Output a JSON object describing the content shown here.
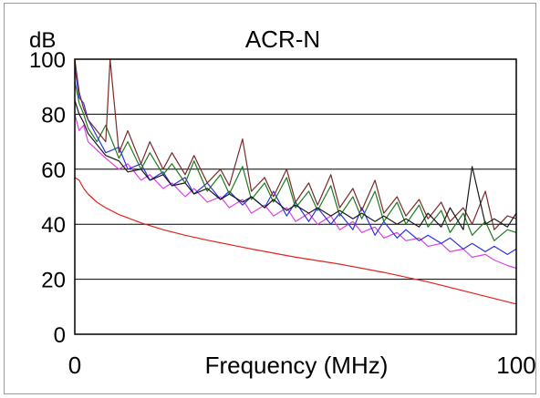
{
  "chart_data": {
    "type": "line",
    "title": "ACR-N",
    "ylabel": "dB",
    "xlabel": "Frequency (MHz)",
    "xlim": [
      0,
      100
    ],
    "ylim": [
      0,
      100
    ],
    "y_ticks": [
      "0",
      "20",
      "40",
      "60",
      "80",
      "100"
    ],
    "x_ticks": [
      "0",
      "100"
    ],
    "grid": "horizontal",
    "legend": "none",
    "series": [
      {
        "color": "#e0241e",
        "x": [
          0,
          1,
          2,
          3,
          5,
          7,
          10,
          15,
          20,
          25,
          30,
          40,
          50,
          60,
          70,
          80,
          90,
          100
        ],
        "values": [
          57,
          56,
          53,
          51,
          48,
          46,
          43.5,
          40.5,
          38,
          36,
          34.2,
          31,
          28,
          25.5,
          22.5,
          19,
          15,
          11
        ]
      },
      {
        "color": "#e040e0",
        "x": [
          0,
          1,
          2,
          3,
          5,
          7,
          10,
          12,
          15,
          17,
          20,
          22,
          25,
          27,
          30,
          33,
          35,
          38,
          40,
          43,
          45,
          48,
          50,
          53,
          55,
          58,
          60,
          63,
          65,
          68,
          70,
          73,
          75,
          78,
          80,
          83,
          85,
          88,
          90,
          93,
          95,
          98,
          100
        ],
        "values": [
          80,
          74,
          76,
          70,
          67,
          64,
          60,
          62,
          56,
          58,
          53,
          55,
          50,
          53,
          48,
          50,
          46,
          49,
          44,
          47,
          43,
          46,
          41,
          44,
          40,
          43,
          38,
          41,
          37,
          39,
          35,
          37,
          34,
          35,
          32,
          33,
          30,
          31,
          28,
          29,
          27,
          25,
          24
        ]
      },
      {
        "color": "#2e2ee6",
        "x": [
          0,
          1,
          2,
          3,
          5,
          7,
          10,
          12,
          15,
          17,
          20,
          22,
          25,
          27,
          30,
          33,
          35,
          38,
          40,
          43,
          45,
          48,
          50,
          53,
          55,
          58,
          60,
          63,
          65,
          68,
          70,
          73,
          75,
          78,
          80,
          83,
          85,
          88,
          90,
          93,
          95,
          98,
          100
        ],
        "values": [
          97,
          86,
          84,
          78,
          72,
          66,
          68,
          60,
          62,
          56,
          59,
          54,
          57,
          51,
          55,
          49,
          52,
          47,
          50,
          46,
          52,
          43,
          48,
          41,
          46,
          40,
          44,
          38,
          46,
          36,
          41,
          35,
          38,
          34,
          36,
          33,
          35,
          31,
          33,
          30,
          32,
          29,
          31
        ]
      },
      {
        "color": "#1e7a1e",
        "x": [
          0,
          1,
          2,
          3,
          5,
          7,
          10,
          12,
          15,
          17,
          20,
          22,
          25,
          27,
          30,
          33,
          35,
          38,
          40,
          43,
          45,
          48,
          50,
          53,
          55,
          58,
          60,
          63,
          65,
          68,
          70,
          73,
          75,
          78,
          80,
          83,
          85,
          88,
          90,
          93,
          95,
          98,
          100
        ],
        "values": [
          92,
          84,
          80,
          75,
          70,
          76,
          64,
          70,
          60,
          66,
          58,
          62,
          55,
          63,
          52,
          58,
          51,
          61,
          49,
          55,
          48,
          57,
          46,
          52,
          45,
          54,
          43,
          50,
          42,
          52,
          41,
          48,
          40,
          47,
          39,
          45,
          37,
          44,
          36,
          41,
          34,
          38,
          37
        ]
      },
      {
        "color": "#7a2a2a",
        "x": [
          0,
          1,
          2,
          3,
          5,
          7,
          8,
          10,
          12,
          15,
          17,
          20,
          22,
          25,
          27,
          30,
          33,
          35,
          38,
          40,
          43,
          45,
          48,
          50,
          53,
          55,
          58,
          60,
          63,
          65,
          68,
          70,
          73,
          75,
          78,
          80,
          83,
          85,
          88,
          90,
          93,
          95,
          98,
          100
        ],
        "values": [
          100,
          88,
          82,
          78,
          74,
          70,
          100,
          66,
          74,
          62,
          70,
          60,
          66,
          58,
          65,
          55,
          60,
          54,
          71,
          52,
          57,
          50,
          60,
          48,
          55,
          47,
          58,
          46,
          53,
          45,
          56,
          44,
          50,
          43,
          49,
          42,
          48,
          41,
          46,
          40,
          52,
          38,
          43,
          42
        ]
      },
      {
        "color": "#1a1a1a",
        "x": [
          0,
          1,
          2,
          3,
          5,
          7,
          10,
          12,
          15,
          17,
          20,
          22,
          25,
          27,
          30,
          33,
          35,
          38,
          40,
          43,
          45,
          48,
          50,
          53,
          55,
          58,
          60,
          63,
          65,
          68,
          70,
          73,
          75,
          78,
          80,
          83,
          85,
          88,
          90,
          93,
          95,
          98,
          100
        ],
        "values": [
          85,
          80,
          77,
          73,
          69,
          65,
          63,
          59,
          60,
          56,
          58,
          54,
          55,
          51,
          53,
          49,
          51,
          48,
          50,
          46,
          49,
          45,
          47,
          44,
          46,
          43,
          45,
          42,
          44,
          41,
          43,
          40,
          42,
          39,
          44,
          39,
          46,
          38,
          61,
          40,
          42,
          39,
          44
        ]
      }
    ]
  }
}
